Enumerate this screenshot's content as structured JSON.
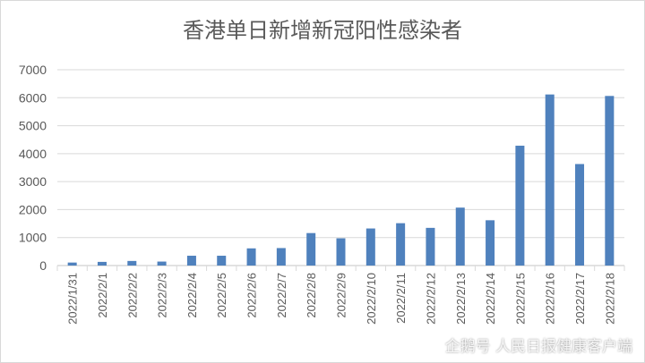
{
  "chart_data": {
    "type": "bar",
    "title": "香港单日新增新冠阳性感染者",
    "categories": [
      "2022/1/31",
      "2022/2/1",
      "2022/2/2",
      "2022/2/3",
      "2022/2/4",
      "2022/2/5",
      "2022/2/6",
      "2022/2/7",
      "2022/2/8",
      "2022/2/9",
      "2022/2/10",
      "2022/2/11",
      "2022/2/12",
      "2022/2/13",
      "2022/2/14",
      "2022/2/15",
      "2022/2/16",
      "2022/2/17",
      "2022/2/18"
    ],
    "values": [
      107,
      131,
      164,
      142,
      351,
      351,
      614,
      625,
      1161,
      974,
      1325,
      1514,
      1347,
      2071,
      1619,
      4285,
      6116,
      3629,
      6063
    ],
    "ylim": [
      0,
      7000
    ],
    "yticks": [
      0,
      1000,
      2000,
      3000,
      4000,
      5000,
      6000,
      7000
    ],
    "grid": true,
    "bar_color": "#4f81bd"
  },
  "watermark": "企鹅号 人民日报健康客户端"
}
